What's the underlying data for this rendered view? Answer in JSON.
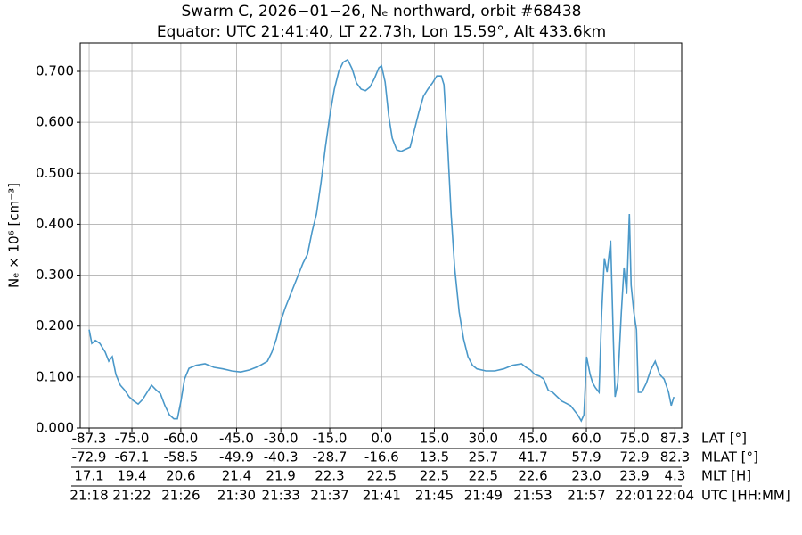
{
  "chart_data": {
    "type": "line",
    "title": "Swarm C, 2026−01−26, Nₑ northward, orbit #68438",
    "subtitle": "Equator: UTC 21:41:40, LT 22.73h, Lon 15.59°, Alt 433.6km",
    "ylabel": "Nₑ × 10⁶ [cm⁻³]",
    "xlabel": "UTC [HH:MM]",
    "grid": true,
    "xlim": [
      21.2883,
      22.0758
    ],
    "ylim": [
      0,
      0.756
    ],
    "yticks": [
      {
        "value": 0,
        "label": "0.000"
      },
      {
        "value": 0.1,
        "label": "0.100"
      },
      {
        "value": 0.2,
        "label": "0.200"
      },
      {
        "value": 0.3,
        "label": "0.300"
      },
      {
        "value": 0.4,
        "label": "0.400"
      },
      {
        "value": 0.5,
        "label": "0.500"
      },
      {
        "value": 0.6,
        "label": "0.600"
      },
      {
        "value": 0.7,
        "label": "0.700"
      }
    ],
    "xticks": [
      {
        "value": 21.3,
        "label": "21:18"
      },
      {
        "value": 21.356,
        "label": "21:22"
      },
      {
        "value": 21.42,
        "label": "21:26"
      },
      {
        "value": 21.493,
        "label": "21:30"
      },
      {
        "value": 21.551,
        "label": "21:33"
      },
      {
        "value": 21.615,
        "label": "21:37"
      },
      {
        "value": 21.683,
        "label": "21:41"
      },
      {
        "value": 21.752,
        "label": "21:45"
      },
      {
        "value": 21.816,
        "label": "21:49"
      },
      {
        "value": 21.881,
        "label": "21:53"
      },
      {
        "value": 21.951,
        "label": "21:57"
      },
      {
        "value": 22.014,
        "label": "22:01"
      },
      {
        "value": 22.067,
        "label": "22:04"
      }
    ],
    "x_rows": [
      {
        "name": "LAT [°]",
        "labels": [
          "-87.3",
          "-75.0",
          "-60.0",
          "-45.0",
          "-30.0",
          "-15.0",
          "0.0",
          "15.0",
          "30.0",
          "45.0",
          "60.0",
          "75.0",
          "87.3"
        ]
      },
      {
        "name": "MLAT [°]",
        "labels": [
          "-72.9",
          "-67.1",
          "-58.5",
          "-49.9",
          "-40.3",
          "-28.7",
          "-16.6",
          "13.5",
          "25.7",
          "41.7",
          "57.9",
          "72.9",
          "82.3"
        ]
      },
      {
        "name": "MLT [H]",
        "labels": [
          "17.1",
          "19.4",
          "20.6",
          "21.4",
          "21.9",
          "22.3",
          "22.5",
          "22.5",
          "22.5",
          "22.6",
          "23.0",
          "23.9",
          "4.3"
        ]
      }
    ],
    "series": [
      {
        "color": "#4a98c9",
        "x": [
          21.3,
          21.3035,
          21.3082,
          21.314,
          21.321,
          21.3257,
          21.3303,
          21.335,
          21.3408,
          21.3467,
          21.3525,
          21.3584,
          21.3642,
          21.37,
          21.3759,
          21.3817,
          21.3875,
          21.3934,
          21.3992,
          21.405,
          21.4109,
          21.4155,
          21.4202,
          21.4249,
          21.4307,
          21.4401,
          21.4517,
          21.4634,
          21.4751,
          21.4867,
          21.4984,
          21.5101,
          21.5218,
          21.5334,
          21.5393,
          21.5451,
          21.5509,
          21.5568,
          21.5684,
          21.5801,
          21.5859,
          21.5918,
          21.5976,
          21.6035,
          21.6093,
          21.6151,
          21.621,
          21.6268,
          21.6326,
          21.6385,
          21.6443,
          21.6501,
          21.656,
          21.6618,
          21.6676,
          21.6735,
          21.6793,
          21.6828,
          21.6875,
          21.6922,
          21.6968,
          21.7027,
          21.7085,
          21.7202,
          21.726,
          21.7319,
          21.7377,
          21.7435,
          21.7494,
          21.7552,
          21.761,
          21.7645,
          21.7692,
          21.7739,
          21.7785,
          21.7844,
          21.7902,
          21.796,
          21.8019,
          21.8077,
          21.8194,
          21.831,
          21.8427,
          21.8544,
          21.8661,
          21.8719,
          21.8777,
          21.8836,
          21.8894,
          21.8952,
          21.9011,
          21.9069,
          21.9186,
          21.9303,
          21.9396,
          21.9443,
          21.9478,
          21.9513,
          21.9559,
          21.9594,
          21.9629,
          21.9676,
          21.9711,
          21.9746,
          21.9781,
          21.9828,
          21.9863,
          21.9886,
          21.9921,
          21.9968,
          22.0003,
          22.0038,
          22.0073,
          22.0096,
          22.0131,
          22.0166,
          22.019,
          22.0236,
          22.0295,
          22.0353,
          22.0411,
          22.047,
          22.0528,
          22.0586,
          22.0621,
          22.0656
        ],
        "values": [
          0.193,
          0.166,
          0.172,
          0.166,
          0.149,
          0.131,
          0.14,
          0.105,
          0.084,
          0.074,
          0.061,
          0.053,
          0.047,
          0.056,
          0.07,
          0.084,
          0.075,
          0.067,
          0.044,
          0.026,
          0.018,
          0.018,
          0.053,
          0.096,
          0.117,
          0.123,
          0.126,
          0.119,
          0.116,
          0.112,
          0.11,
          0.114,
          0.121,
          0.131,
          0.149,
          0.175,
          0.21,
          0.236,
          0.28,
          0.324,
          0.341,
          0.385,
          0.42,
          0.481,
          0.551,
          0.613,
          0.665,
          0.7,
          0.718,
          0.723,
          0.705,
          0.677,
          0.665,
          0.662,
          0.669,
          0.686,
          0.707,
          0.711,
          0.679,
          0.613,
          0.569,
          0.546,
          0.543,
          0.551,
          0.586,
          0.621,
          0.651,
          0.665,
          0.677,
          0.691,
          0.691,
          0.674,
          0.56,
          0.42,
          0.315,
          0.228,
          0.175,
          0.14,
          0.123,
          0.116,
          0.112,
          0.112,
          0.116,
          0.123,
          0.126,
          0.119,
          0.114,
          0.105,
          0.102,
          0.096,
          0.074,
          0.07,
          0.053,
          0.044,
          0.026,
          0.014,
          0.026,
          0.14,
          0.105,
          0.088,
          0.079,
          0.07,
          0.228,
          0.333,
          0.306,
          0.368,
          0.175,
          0.061,
          0.088,
          0.228,
          0.315,
          0.263,
          0.42,
          0.28,
          0.228,
          0.193,
          0.07,
          0.07,
          0.088,
          0.114,
          0.131,
          0.105,
          0.096,
          0.07,
          0.044,
          0.061
        ]
      }
    ]
  }
}
